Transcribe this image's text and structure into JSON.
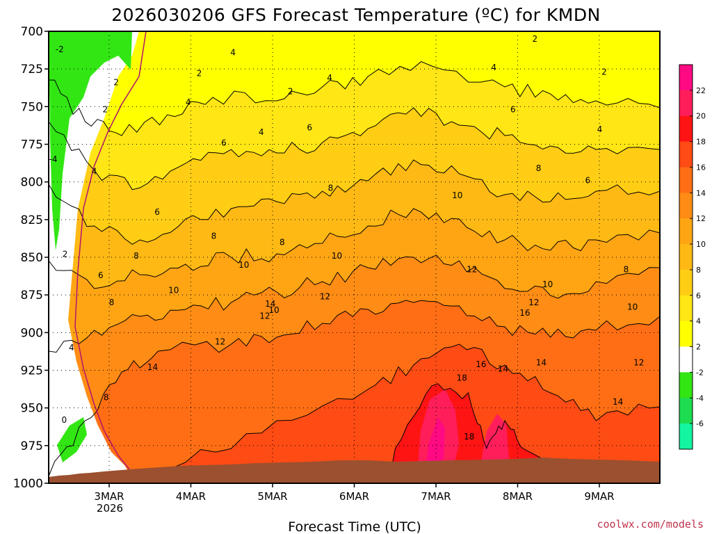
{
  "chart_data": {
    "type": "heatmap",
    "title": "2026030206 GFS Forecast Temperature (ºC) for KMDN",
    "xlabel": "Forecast Time (UTC)",
    "ylabel": "",
    "credit": "coolwx.com/models",
    "y_ticks": [
      "700",
      "725",
      "750",
      "775",
      "800",
      "825",
      "850",
      "875",
      "900",
      "925",
      "950",
      "975",
      "1000"
    ],
    "ylim": [
      1000,
      700
    ],
    "x_ticks": [
      "3MAR",
      "4MAR",
      "5MAR",
      "6MAR",
      "7MAR",
      "8MAR",
      "9MAR"
    ],
    "x_year": "2026",
    "colorbar": {
      "labels": [
        "22",
        "20",
        "18",
        "16",
        "14",
        "12",
        "10",
        "8",
        "6",
        "4",
        "2",
        "-2",
        "-4",
        "-6"
      ],
      "colors": [
        "#ff0a82",
        "#ff1e5a",
        "#ff1414",
        "#ff4b14",
        "#ff6e14",
        "#ff8c14",
        "#ffa514",
        "#ffb914",
        "#ffcd14",
        "#ffe614",
        "#ffff00",
        "#ffffff",
        "#32e614",
        "#1edc50",
        "#14f5a0"
      ]
    },
    "contour_labels": [
      {
        "text": "-2",
        "t": 0.12,
        "p": 712
      },
      {
        "text": "-4",
        "t": 0.05,
        "p": 785
      },
      {
        "text": "2",
        "t": 0.18,
        "p": 848
      },
      {
        "text": "4",
        "t": 0.25,
        "p": 910
      },
      {
        "text": "0",
        "t": 0.17,
        "p": 958
      },
      {
        "text": "2",
        "t": 0.62,
        "p": 752
      },
      {
        "text": "2",
        "t": 0.74,
        "p": 734
      },
      {
        "text": "4",
        "t": 0.5,
        "p": 793
      },
      {
        "text": "6",
        "t": 0.57,
        "p": 862
      },
      {
        "text": "8",
        "t": 0.63,
        "p": 943
      },
      {
        "text": "8",
        "t": 0.69,
        "p": 880
      },
      {
        "text": "6",
        "t": 1.19,
        "p": 820
      },
      {
        "text": "8",
        "t": 0.96,
        "p": 849
      },
      {
        "text": "14",
        "t": 1.14,
        "p": 923
      },
      {
        "text": "2",
        "t": 1.65,
        "p": 728
      },
      {
        "text": "4",
        "t": 1.53,
        "p": 747
      },
      {
        "text": "4",
        "t": 2.02,
        "p": 714
      },
      {
        "text": "6",
        "t": 1.92,
        "p": 774
      },
      {
        "text": "8",
        "t": 1.81,
        "p": 836
      },
      {
        "text": "10",
        "t": 1.37,
        "p": 872
      },
      {
        "text": "10",
        "t": 2.14,
        "p": 855
      },
      {
        "text": "12",
        "t": 2.37,
        "p": 889
      },
      {
        "text": "12",
        "t": 1.88,
        "p": 906
      },
      {
        "text": "14",
        "t": 2.43,
        "p": 881
      },
      {
        "text": "8",
        "t": 2.56,
        "p": 840
      },
      {
        "text": "10",
        "t": 2.47,
        "p": 885
      },
      {
        "text": "4",
        "t": 2.33,
        "p": 767
      },
      {
        "text": "2",
        "t": 2.65,
        "p": 740
      },
      {
        "text": "4",
        "t": 3.08,
        "p": 731
      },
      {
        "text": "6",
        "t": 2.86,
        "p": 764
      },
      {
        "text": "8",
        "t": 3.09,
        "p": 804
      },
      {
        "text": "10",
        "t": 3.16,
        "p": 849
      },
      {
        "text": "12",
        "t": 3.03,
        "p": 876
      },
      {
        "text": "10",
        "t": 4.48,
        "p": 809
      },
      {
        "text": "12",
        "t": 4.64,
        "p": 858
      },
      {
        "text": "16",
        "t": 4.74,
        "p": 921
      },
      {
        "text": "18",
        "t": 4.53,
        "p": 930
      },
      {
        "text": "14",
        "t": 4.98,
        "p": 924
      },
      {
        "text": "12",
        "t": 5.32,
        "p": 880
      },
      {
        "text": "10",
        "t": 5.47,
        "p": 868
      },
      {
        "text": "16",
        "t": 5.22,
        "p": 887
      },
      {
        "text": "14",
        "t": 5.4,
        "p": 920
      },
      {
        "text": "18",
        "t": 4.61,
        "p": 969
      },
      {
        "text": "8",
        "t": 5.37,
        "p": 791
      },
      {
        "text": "6",
        "t": 5.09,
        "p": 752
      },
      {
        "text": "4",
        "t": 4.88,
        "p": 724
      },
      {
        "text": "2",
        "t": 5.33,
        "p": 705
      },
      {
        "text": "2",
        "t": 6.09,
        "p": 727
      },
      {
        "text": "4",
        "t": 6.04,
        "p": 765
      },
      {
        "text": "6",
        "t": 5.91,
        "p": 799
      },
      {
        "text": "8",
        "t": 6.33,
        "p": 858
      },
      {
        "text": "10",
        "t": 6.4,
        "p": 883
      },
      {
        "text": "12",
        "t": 6.47,
        "p": 920
      },
      {
        "text": "14",
        "t": 6.24,
        "p": 946
      }
    ]
  }
}
